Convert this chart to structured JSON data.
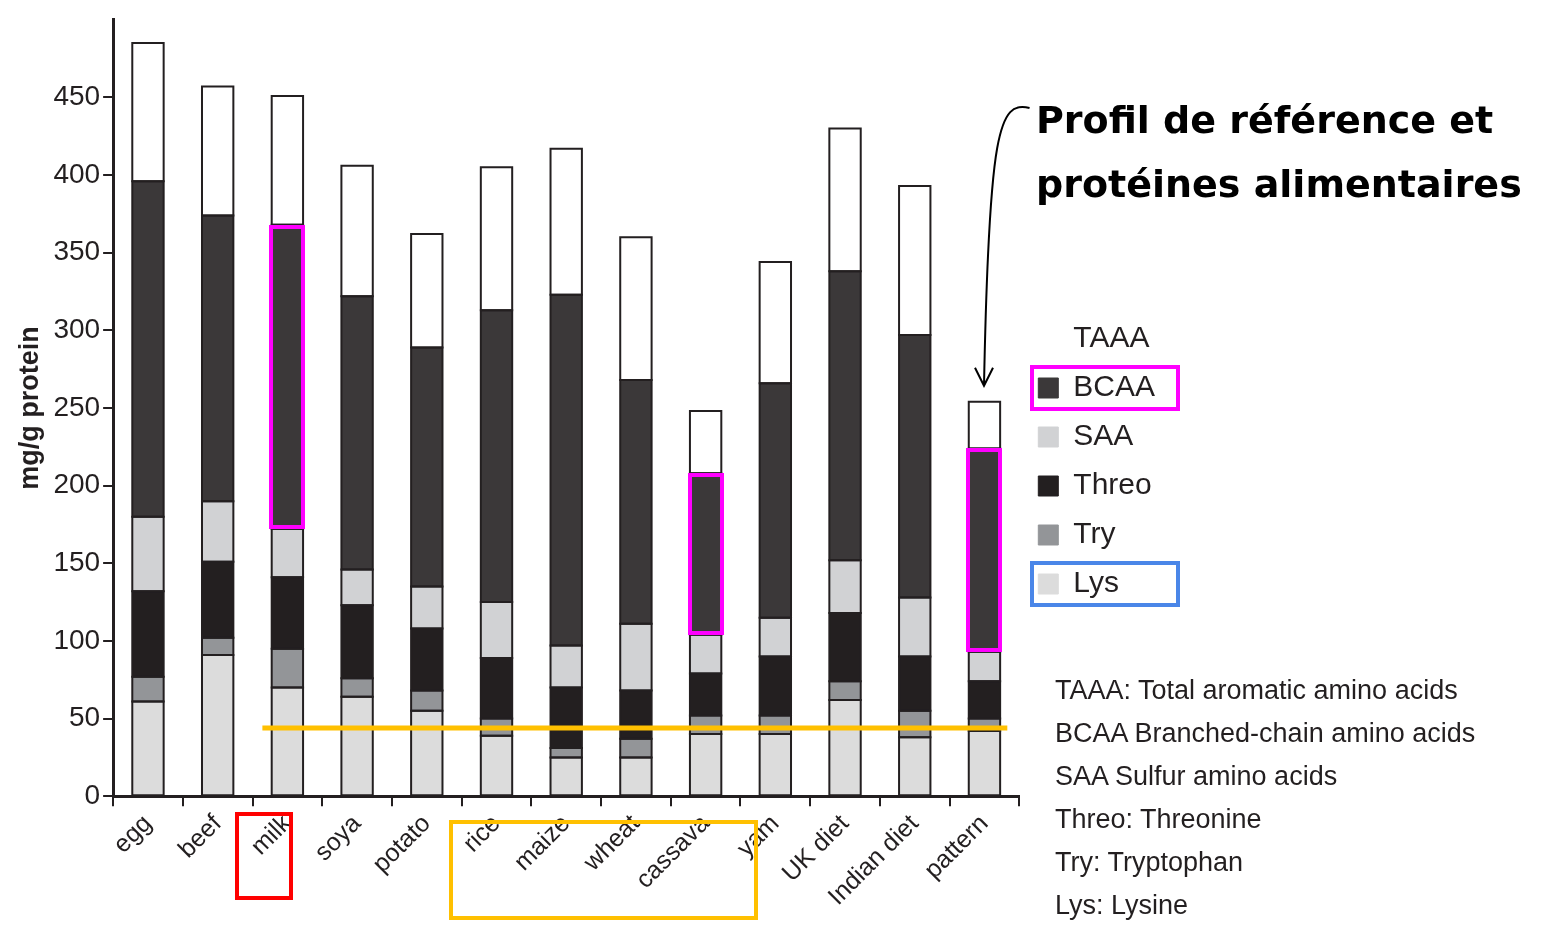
{
  "chart_data": {
    "type": "bar",
    "stacked": true,
    "ylabel": "mg/g protein",
    "categories": [
      "egg",
      "beef",
      "milk",
      "soya",
      "potato",
      "rice",
      "maize",
      "wheat",
      "cassava",
      "yam",
      "UK diet",
      "Indian diet",
      "pattern"
    ],
    "series": [
      {
        "name": "Lys",
        "color": "#dcdcdc",
        "values": [
          61,
          91,
          70,
          64,
          55,
          39,
          25,
          25,
          40,
          40,
          62,
          38,
          42
        ]
      },
      {
        "name": "Try",
        "color": "#939598",
        "values": [
          16,
          11,
          25,
          12,
          13,
          11,
          6,
          12,
          12,
          12,
          12,
          17,
          8
        ]
      },
      {
        "name": "Threo",
        "color": "#231f20",
        "values": [
          55,
          49,
          46,
          47,
          40,
          39,
          39,
          31,
          27,
          38,
          44,
          35,
          24
        ]
      },
      {
        "name": "SAA",
        "color": "#d1d2d4",
        "values": [
          48,
          39,
          31,
          23,
          27,
          36,
          27,
          43,
          25,
          25,
          34,
          38,
          19
        ]
      },
      {
        "name": "BCAA",
        "color": "#3b3839",
        "values": [
          216,
          184,
          196,
          176,
          154,
          188,
          226,
          157,
          104,
          151,
          186,
          169,
          131
        ]
      },
      {
        "name": "TAAA",
        "color": "#ffffff",
        "values": [
          89,
          83,
          83,
          84,
          73,
          92,
          94,
          92,
          40,
          78,
          92,
          96,
          30
        ]
      }
    ],
    "ylim": [
      0,
      500
    ],
    "yticks": [
      0,
      50,
      100,
      150,
      200,
      250,
      300,
      350,
      400,
      450
    ],
    "grid": false,
    "legend": "right",
    "ref_lines": [
      {
        "axis": "y",
        "value": 44,
        "color": "#ffc000"
      }
    ],
    "annotations": [
      "Profil de référence et protéines alimentaires",
      "TAAA: Total aromatic amino acids",
      "BCAA Branched-chain amino acids",
      "SAA Sulfur amino acids",
      "Threo: Threonine",
      "Try: Tryptophan",
      "Lys: Lysine"
    ]
  }
}
